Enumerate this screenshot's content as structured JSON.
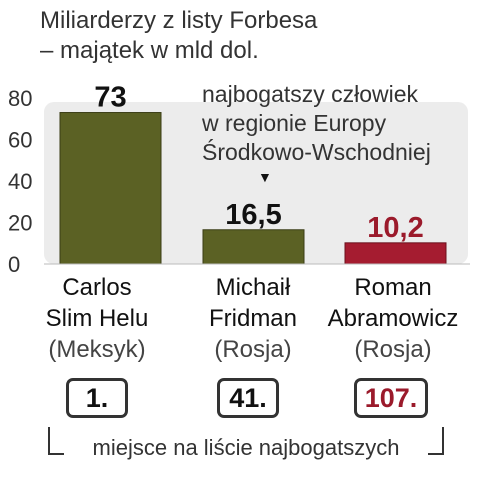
{
  "chart_data": {
    "type": "bar",
    "title": [
      "Miliarderzy z listy Forbesa",
      "– majątek w mld dol."
    ],
    "categories": [
      {
        "name": [
          "Carlos",
          "Slim Helu"
        ],
        "country": "(Meksyk)",
        "rank": "1."
      },
      {
        "name": [
          "Michaił",
          "Fridman"
        ],
        "country": "(Rosja)",
        "rank": "41."
      },
      {
        "name": [
          "Roman",
          "Abramowicz"
        ],
        "country": "(Rosja)",
        "rank": "107."
      }
    ],
    "values": [
      73,
      16.5,
      10.2
    ],
    "value_labels": [
      "73",
      "16,5",
      "10,2"
    ],
    "ylim": [
      0,
      80
    ],
    "yticks": [
      0,
      20,
      40,
      60,
      80
    ],
    "grid": false,
    "annotation": [
      "najbogatszy człowiek",
      "w regionie Europy",
      "Środkowo-Wschodniej"
    ],
    "footnote": "miejsce na liście najbogatszych"
  },
  "colors": {
    "olive": "#5b6124",
    "red": "#a51c30",
    "plot_bg": "#ececec",
    "red_text": "#9b1a2b"
  },
  "bar_colors": [
    "olive",
    "olive",
    "red"
  ],
  "icons": {
    "annotation_arrow": "down-arrow-icon"
  }
}
